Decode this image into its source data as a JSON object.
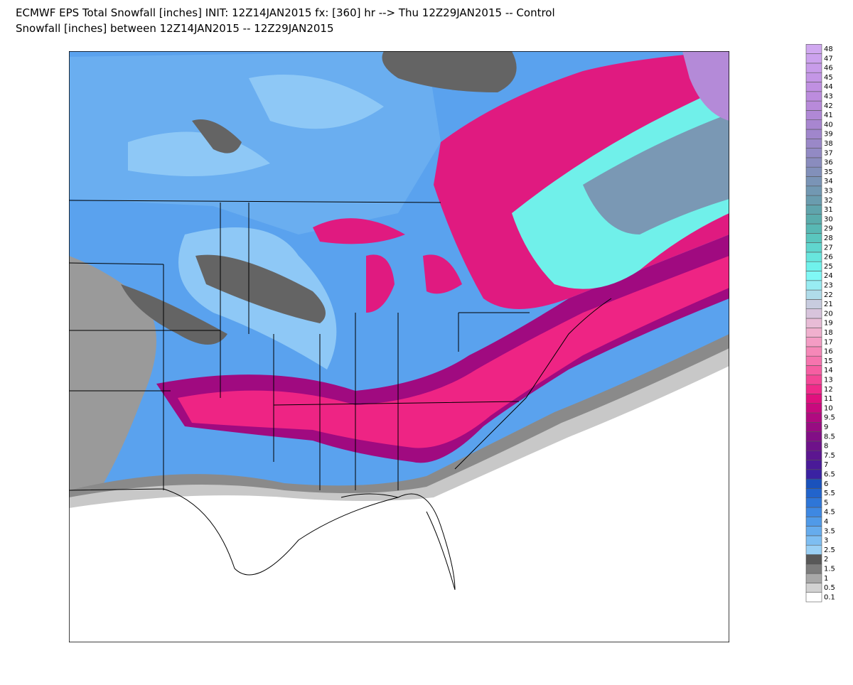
{
  "header": {
    "title": "ECMWF EPS Total Snowfall [inches] INIT: 12Z14JAN2015 fx: [360] hr --> Thu 12Z29JAN2015 -- Control",
    "subtitle": "Snowfall [inches] between 12Z14JAN2015 -- 12Z29JAN2015"
  },
  "colorbar": {
    "levels": [
      0.1,
      0.5,
      1,
      1.5,
      2,
      2.5,
      3,
      3.5,
      4,
      4.5,
      5,
      5.5,
      6,
      6.5,
      7,
      7.5,
      8,
      8.5,
      9,
      9.5,
      10,
      11,
      12,
      13,
      14,
      15,
      16,
      17,
      18,
      19,
      20,
      21,
      22,
      23,
      24,
      25,
      26,
      27,
      28,
      29,
      30,
      31,
      32,
      33,
      34,
      35,
      36,
      37,
      38,
      39,
      40,
      41,
      42,
      43,
      44,
      45,
      46,
      47,
      48
    ],
    "colors": [
      "#ffffff",
      "#d2d2d2",
      "#a8a8a8",
      "#7c7c7c",
      "#585858",
      "#9ad0f5",
      "#7ebef2",
      "#66aced",
      "#509ae8",
      "#3e88e2",
      "#2e76d8",
      "#2264cc",
      "#1a52bc",
      "#3a22a2",
      "#4a1a98",
      "#5c1690",
      "#6e128a",
      "#820e86",
      "#980c82",
      "#b00a80",
      "#c80a7e",
      "#e0107e",
      "#f02a8a",
      "#f44696",
      "#f65ea2",
      "#f674ae",
      "#f688b8",
      "#f49cc4",
      "#f0b0ce",
      "#e8bcd6",
      "#d8c4dc",
      "#c8ccdf",
      "#b0dcea",
      "#98ecf2",
      "#80f8f6",
      "#70f2ec",
      "#68e6de",
      "#60d6ce",
      "#5ac6be",
      "#58b8b4",
      "#5aacac",
      "#60a4ac",
      "#6a9cae",
      "#7298b2",
      "#7a94b6",
      "#8290ba",
      "#8a8cbe",
      "#928ac4",
      "#9a88c8",
      "#a086cc",
      "#a886d0",
      "#b088d6",
      "#b88ada",
      "#bc8cde",
      "#c090e2",
      "#c496e6",
      "#c89cea",
      "#cca2ee",
      "#d0a8f0"
    ]
  }
}
